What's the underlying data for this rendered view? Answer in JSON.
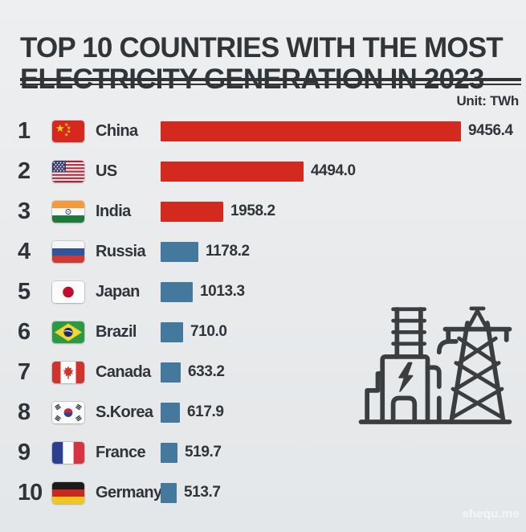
{
  "header": {
    "title_line1": "TOP 10 COUNTRIES WITH THE MOST",
    "title_line2": "ELECTRICITY GENERATION IN 2023",
    "unit_label": "Unit: TWh"
  },
  "watermark": "shequ.me",
  "colors": {
    "background": "#e8eaec",
    "text": "#30353a",
    "bar_top3": "#d4291e",
    "bar_rest": "#44799d",
    "illustration_stroke": "#3a3e41"
  },
  "chart_data": {
    "type": "bar",
    "orientation": "horizontal",
    "title": "Top 10 Countries with the Most Electricity Generation in 2023",
    "unit": "TWh",
    "legend": false,
    "grid": false,
    "xlim": [
      0,
      10000
    ],
    "categories": [
      "China",
      "US",
      "India",
      "Russia",
      "Japan",
      "Brazil",
      "Canada",
      "S.Korea",
      "France",
      "Germany"
    ],
    "values": [
      9456.4,
      4494.0,
      1958.2,
      1178.2,
      1013.3,
      710.0,
      633.2,
      617.9,
      519.7,
      513.7
    ],
    "rows": [
      {
        "rank": "1",
        "country": "China",
        "value": 9456.4,
        "value_label": "9456.4",
        "flag": "cn",
        "bar_color": "#d4291e"
      },
      {
        "rank": "2",
        "country": "US",
        "value": 4494.0,
        "value_label": "4494.0",
        "flag": "us",
        "bar_color": "#d4291e"
      },
      {
        "rank": "3",
        "country": "India",
        "value": 1958.2,
        "value_label": "1958.2",
        "flag": "in",
        "bar_color": "#d4291e"
      },
      {
        "rank": "4",
        "country": "Russia",
        "value": 1178.2,
        "value_label": "1178.2",
        "flag": "ru",
        "bar_color": "#44799d"
      },
      {
        "rank": "5",
        "country": "Japan",
        "value": 1013.3,
        "value_label": "1013.3",
        "flag": "jp",
        "bar_color": "#44799d"
      },
      {
        "rank": "6",
        "country": "Brazil",
        "value": 710.0,
        "value_label": "710.0",
        "flag": "br",
        "bar_color": "#44799d"
      },
      {
        "rank": "7",
        "country": "Canada",
        "value": 633.2,
        "value_label": "633.2",
        "flag": "ca",
        "bar_color": "#44799d"
      },
      {
        "rank": "8",
        "country": "S.Korea",
        "value": 617.9,
        "value_label": "617.9",
        "flag": "kr",
        "bar_color": "#44799d"
      },
      {
        "rank": "9",
        "country": "France",
        "value": 519.7,
        "value_label": "519.7",
        "flag": "fr",
        "bar_color": "#44799d"
      },
      {
        "rank": "10",
        "country": "Germany",
        "value": 513.7,
        "value_label": "513.7",
        "flag": "de",
        "bar_color": "#44799d"
      }
    ]
  }
}
